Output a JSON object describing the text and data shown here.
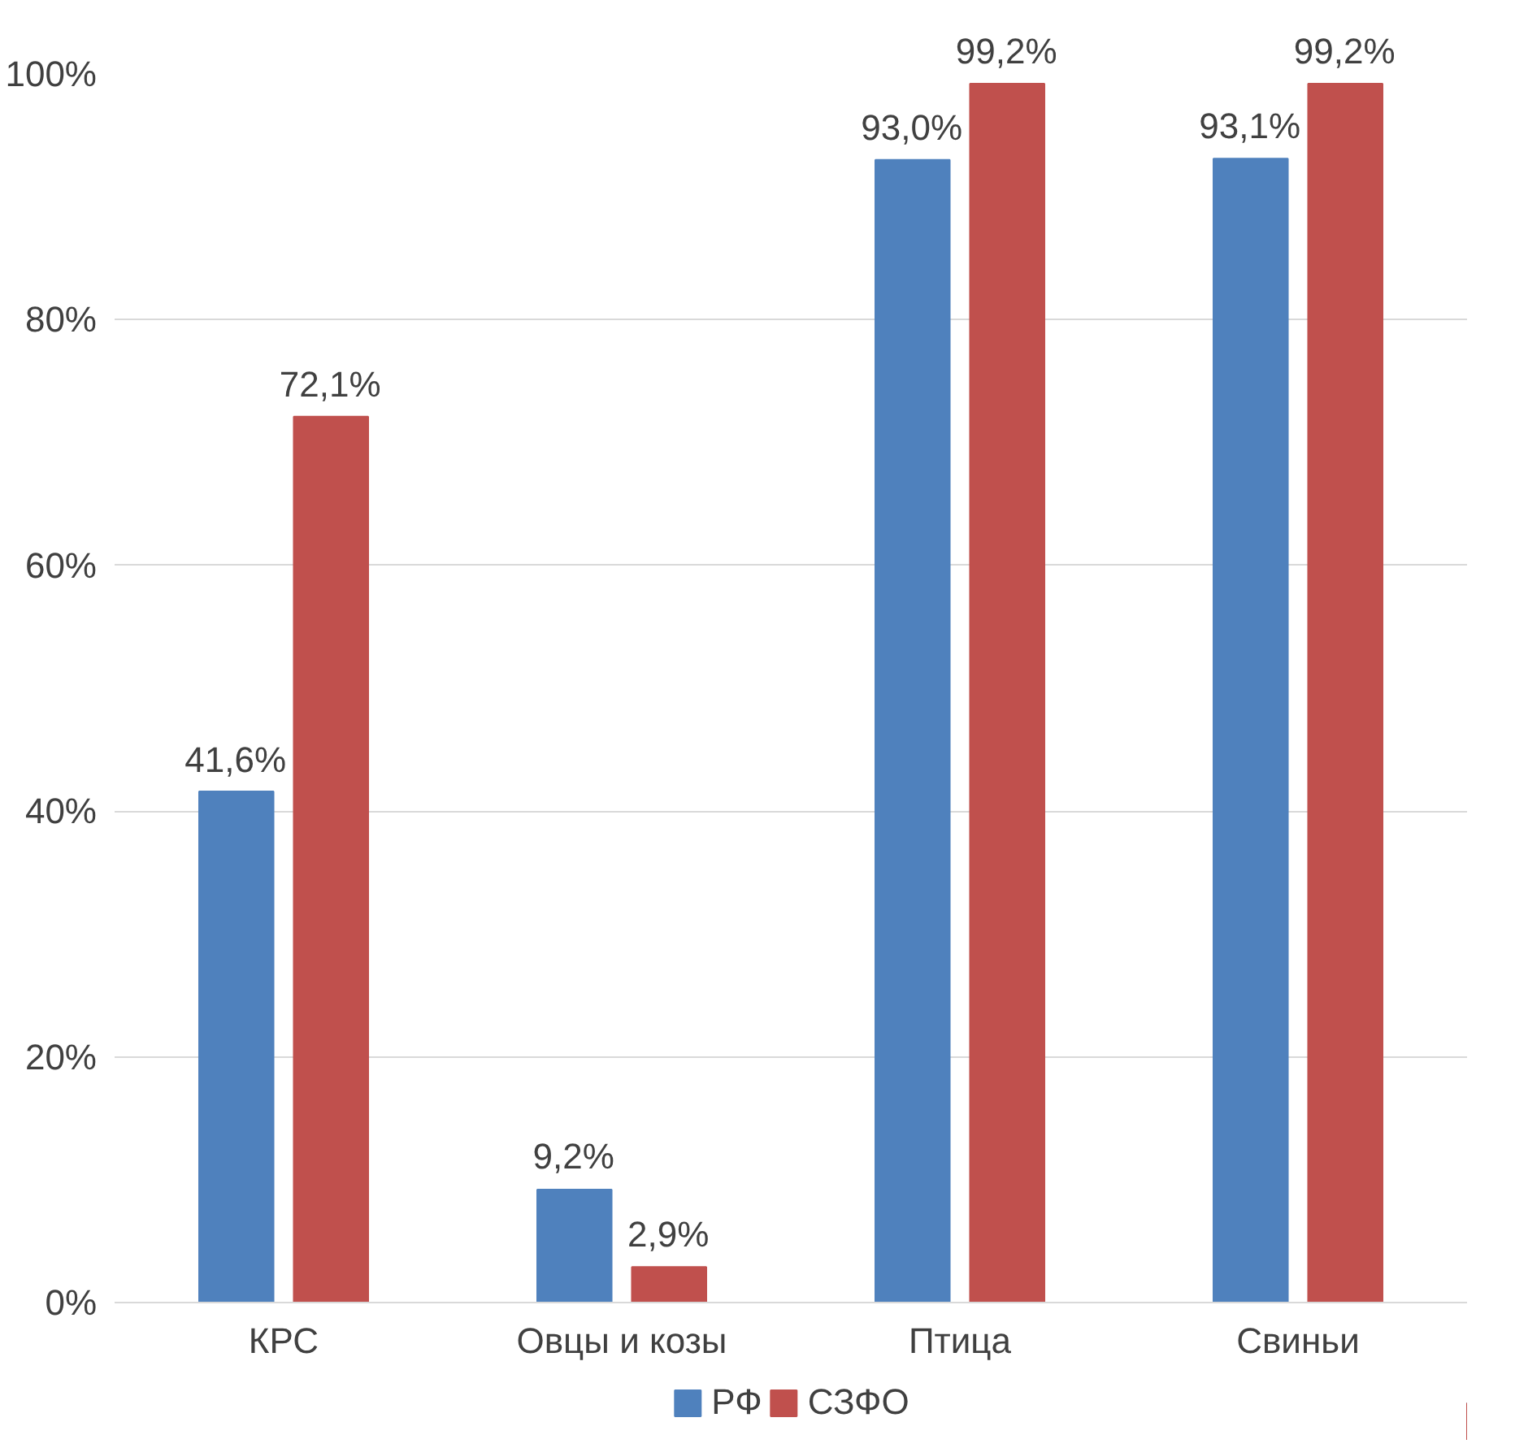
{
  "chart_data": {
    "type": "bar",
    "categories": [
      "КРС",
      "Овцы и козы",
      "Птица",
      "Свиньи"
    ],
    "series": [
      {
        "name": "РФ",
        "color": "#4f81bd",
        "values": [
          41.6,
          9.2,
          93.0,
          93.1
        ],
        "value_labels": [
          "41,6%",
          "9,2%",
          "93,0%",
          "93,1%"
        ]
      },
      {
        "name": "СЗФО",
        "color": "#c0504d",
        "values": [
          72.1,
          2.9,
          99.2,
          99.2
        ],
        "value_labels": [
          "72,1%",
          "2,9%",
          "99,2%",
          "99,2%"
        ]
      }
    ],
    "ylim": [
      0,
      100
    ],
    "yticks": [
      {
        "value": 0,
        "label": "0%"
      },
      {
        "value": 20,
        "label": "20%"
      },
      {
        "value": 40,
        "label": "40%"
      },
      {
        "value": 60,
        "label": "60%"
      },
      {
        "value": 80,
        "label": "80%"
      },
      {
        "value": 100,
        "label": "100%"
      }
    ],
    "grid": "y",
    "legend": "bottom"
  }
}
